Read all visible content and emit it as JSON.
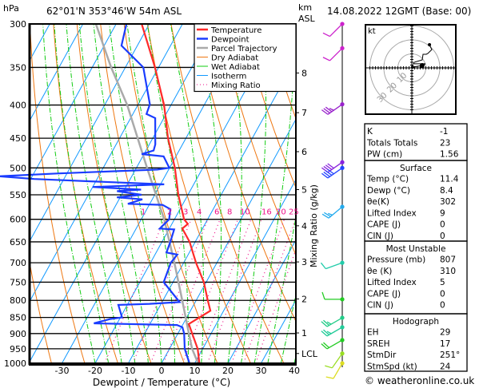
{
  "header": {
    "pressure_unit": "hPa",
    "location": "62°01'N 353°46'W 54m ASL",
    "km_label": "km",
    "asl_label": "ASL",
    "datetime": "14.08.2022 12GMT (Base: 00)"
  },
  "legend": [
    {
      "label": "Temperature",
      "color": "#ff2a2a",
      "style": "thick"
    },
    {
      "label": "Dewpoint",
      "color": "#1a3cff",
      "style": "thick"
    },
    {
      "label": "Parcel Trajectory",
      "color": "#aaaaaa",
      "style": "thick"
    },
    {
      "label": "Dry Adiabat",
      "color": "#ee7711",
      "style": "thin"
    },
    {
      "label": "Wet Adiabat",
      "color": "#11cc11",
      "style": "thin"
    },
    {
      "label": "Isotherm",
      "color": "#1199ff",
      "style": "thin"
    },
    {
      "label": "Mixing Ratio",
      "color": "#ee1188",
      "style": "dotted"
    }
  ],
  "chart_data": {
    "type": "skew-t",
    "xlabel": "Dewpoint / Temperature (°C)",
    "ylabel": "hPa",
    "right_axis_label": "Mixing Ratio (g/kg)",
    "xlim": [
      -40,
      40
    ],
    "ylim": [
      1000,
      300
    ],
    "pressure_ticks": [
      300,
      350,
      400,
      450,
      500,
      550,
      600,
      650,
      700,
      750,
      800,
      850,
      900,
      950,
      1000
    ],
    "temperature_ticks": [
      -30,
      -20,
      -10,
      0,
      10,
      20,
      30,
      40
    ],
    "km_ticks": [
      {
        "label": "8",
        "p": 357
      },
      {
        "label": "7",
        "p": 411
      },
      {
        "label": "6",
        "p": 472
      },
      {
        "label": "5",
        "p": 540
      },
      {
        "label": "4",
        "p": 614
      },
      {
        "label": "3",
        "p": 698
      },
      {
        "label": "2",
        "p": 796
      },
      {
        "label": "1",
        "p": 898
      },
      {
        "label": "LCL",
        "p": 966
      }
    ],
    "mixing_ratio_labels": [
      "1",
      "2",
      "3",
      "4",
      "6",
      "8",
      "10",
      "16",
      "20",
      "25"
    ],
    "mixing_ratio_values": [
      1,
      2,
      3,
      4,
      6,
      8,
      10,
      16,
      20,
      25
    ],
    "temperature": [
      [
        1000,
        11.4
      ],
      [
        950,
        8.5
      ],
      [
        900,
        4.3
      ],
      [
        870,
        1.7
      ],
      [
        830,
        6.0
      ],
      [
        800,
        3.5
      ],
      [
        750,
        -0.7
      ],
      [
        700,
        -6.3
      ],
      [
        650,
        -11.7
      ],
      [
        620,
        -16.1
      ],
      [
        610,
        -15.2
      ],
      [
        600,
        -17.1
      ],
      [
        550,
        -22.9
      ],
      [
        500,
        -28.4
      ],
      [
        450,
        -35.4
      ],
      [
        400,
        -42.1
      ],
      [
        350,
        -51.1
      ],
      [
        300,
        -62.3
      ]
    ],
    "dewpoint": [
      [
        1000,
        8.4
      ],
      [
        950,
        4.6
      ],
      [
        900,
        1.9
      ],
      [
        880,
        0.3
      ],
      [
        873,
        -1.7
      ],
      [
        868,
        -27
      ],
      [
        855,
        -22.9
      ],
      [
        850,
        -19.5
      ],
      [
        813,
        -22.7
      ],
      [
        810,
        -13.5
      ],
      [
        805,
        -4.7
      ],
      [
        750,
        -12.8
      ],
      [
        700,
        -13.9
      ],
      [
        680,
        -13.3
      ],
      [
        675,
        -16.9
      ],
      [
        650,
        -17.5
      ],
      [
        622,
        -18.4
      ],
      [
        620,
        -22.9
      ],
      [
        600,
        -21.6
      ],
      [
        579,
        -22.9
      ],
      [
        570,
        -26
      ],
      [
        568,
        -36.6
      ],
      [
        559,
        -33
      ],
      [
        555,
        -41
      ],
      [
        550,
        -34
      ],
      [
        543,
        -42
      ],
      [
        540,
        -35
      ],
      [
        535,
        -50
      ],
      [
        530,
        -28.9
      ],
      [
        520,
        -69
      ],
      [
        515,
        -80
      ],
      [
        510,
        -63
      ],
      [
        503,
        -33.4
      ],
      [
        500,
        -30.1
      ],
      [
        480,
        -33.7
      ],
      [
        476,
        -40.7
      ],
      [
        470,
        -37.7
      ],
      [
        460,
        -38.2
      ],
      [
        419,
        -42.6
      ],
      [
        413,
        -45.9
      ],
      [
        399,
        -46.5
      ],
      [
        350,
        -54.6
      ],
      [
        324,
        -64.8
      ],
      [
        300,
        -66.9
      ]
    ],
    "parcel": [
      [
        1000,
        11.0
      ],
      [
        950,
        6.8
      ],
      [
        900,
        3.3
      ],
      [
        800,
        -4.2
      ],
      [
        700,
        -12.8
      ],
      [
        600,
        -23.1
      ],
      [
        500,
        -36.8
      ],
      [
        400,
        -53.2
      ],
      [
        350,
        -64.3
      ],
      [
        300,
        -76.1
      ]
    ],
    "winds": [
      {
        "p": 300,
        "dir": 225,
        "spd": 10,
        "color": "#cc22cc"
      },
      {
        "p": 327,
        "dir": 225,
        "spd": 10,
        "color": "#cc22cc"
      },
      {
        "p": 399,
        "dir": 235,
        "spd": 35,
        "color": "#9922cc"
      },
      {
        "p": 490,
        "dir": 235,
        "spd": 40,
        "color": "#8822dd"
      },
      {
        "p": 500,
        "dir": 235,
        "spd": 40,
        "color": "#2244ff"
      },
      {
        "p": 574,
        "dir": 230,
        "spd": 25,
        "color": "#22aaee"
      },
      {
        "p": 700,
        "dir": 250,
        "spd": 10,
        "color": "#22ccaa"
      },
      {
        "p": 797,
        "dir": 270,
        "spd": 10,
        "color": "#22cc22"
      },
      {
        "p": 851,
        "dir": 240,
        "spd": 25,
        "color": "#22cc88"
      },
      {
        "p": 880,
        "dir": 240,
        "spd": 25,
        "color": "#22cc99"
      },
      {
        "p": 921,
        "dir": 240,
        "spd": 20,
        "color": "#22cc22"
      },
      {
        "p": 966,
        "dir": 215,
        "spd": 10,
        "color": "#99dd22"
      },
      {
        "p": 1000,
        "dir": 210,
        "spd": 10,
        "color": "#dddd22"
      }
    ]
  },
  "hodograph": {
    "unit_label": "kt",
    "ring_labels": [
      "10",
      "20",
      "30"
    ],
    "ring_speeds": [
      10,
      20,
      30
    ],
    "points_uv_kt": [
      [
        0.5,
        0.5
      ],
      [
        7.4,
        1.7
      ],
      [
        9.7,
        2.9
      ],
      [
        1.1,
        2.9
      ],
      [
        1.7,
        4.0
      ],
      [
        7.4,
        5.7
      ],
      [
        8.0,
        9.7
      ],
      [
        10.3,
        9.7
      ],
      [
        11.4,
        10.3
      ],
      [
        12.6,
        11.4
      ],
      [
        14.3,
        13.1
      ],
      [
        12.6,
        16.6
      ]
    ]
  },
  "indices": {
    "general": [
      {
        "label": "K",
        "value": "-1"
      },
      {
        "label": "Totals Totals",
        "value": "23"
      },
      {
        "label": "PW (cm)",
        "value": "1.56"
      }
    ],
    "surface": {
      "title": "Surface",
      "rows": [
        {
          "label": "Temp (°C)",
          "value": "11.4"
        },
        {
          "label": "Dewp (°C)",
          "value": "8.4"
        },
        {
          "label": "θe(K)",
          "value": "302"
        },
        {
          "label": "Lifted Index",
          "value": "9"
        },
        {
          "label": "CAPE (J)",
          "value": "0"
        },
        {
          "label": "CIN (J)",
          "value": "0"
        }
      ]
    },
    "most_unstable": {
      "title": "Most Unstable",
      "rows": [
        {
          "label": "Pressure (mb)",
          "value": "807"
        },
        {
          "label": "θe (K)",
          "value": "310"
        },
        {
          "label": "Lifted Index",
          "value": "5"
        },
        {
          "label": "CAPE (J)",
          "value": "0"
        },
        {
          "label": "CIN (J)",
          "value": "0"
        }
      ]
    },
    "hodograph": {
      "title": "Hodograph",
      "rows": [
        {
          "label": "EH",
          "value": "29"
        },
        {
          "label": "SREH",
          "value": "17"
        },
        {
          "label": "StmDir",
          "value": "251°"
        },
        {
          "label": "StmSpd (kt)",
          "value": "24"
        }
      ]
    }
  },
  "footer": {
    "copyright": "© weatheronline.co.uk"
  }
}
